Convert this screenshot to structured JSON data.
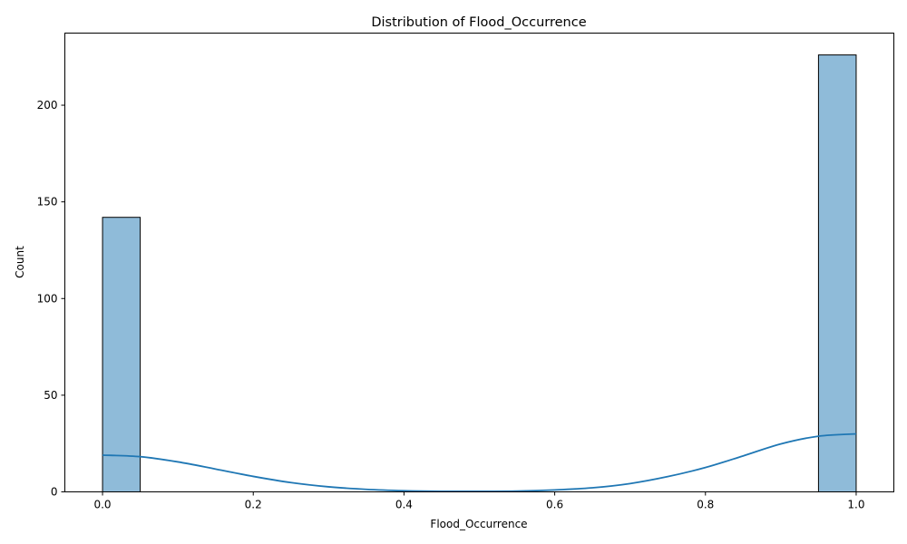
{
  "chart_data": {
    "type": "bar",
    "title": "Distribution of Flood_Occurrence",
    "xlabel": "Flood_Occurrence",
    "ylabel": "Count",
    "xlim": [
      -0.05,
      1.05
    ],
    "ylim": [
      0,
      237.3
    ],
    "xticks": [
      "0.0",
      "0.2",
      "0.4",
      "0.6",
      "0.8",
      "1.0"
    ],
    "yticks": [
      "0",
      "50",
      "100",
      "150",
      "200"
    ],
    "grid": false,
    "bins": [
      {
        "x0": 0.0,
        "x1": 0.05,
        "count": 142
      },
      {
        "x0": 0.95,
        "x1": 1.0,
        "count": 226
      }
    ],
    "kde": {
      "x": [
        0.0,
        0.05,
        0.1,
        0.15,
        0.2,
        0.25,
        0.3,
        0.35,
        0.4,
        0.45,
        0.5,
        0.55,
        0.6,
        0.65,
        0.7,
        0.75,
        0.8,
        0.85,
        0.9,
        0.95,
        1.0
      ],
      "y": [
        19,
        18.2,
        15.5,
        11.8,
        8,
        4.8,
        2.6,
        1.3,
        0.6,
        0.3,
        0.3,
        0.4,
        1,
        2.1,
        4.3,
        7.9,
        12.6,
        18.6,
        24.8,
        28.8,
        30
      ]
    },
    "colors": {
      "bar_fill": "#8fbbd9",
      "bar_edge": "#000000",
      "kde_line": "#1f77b4"
    }
  }
}
